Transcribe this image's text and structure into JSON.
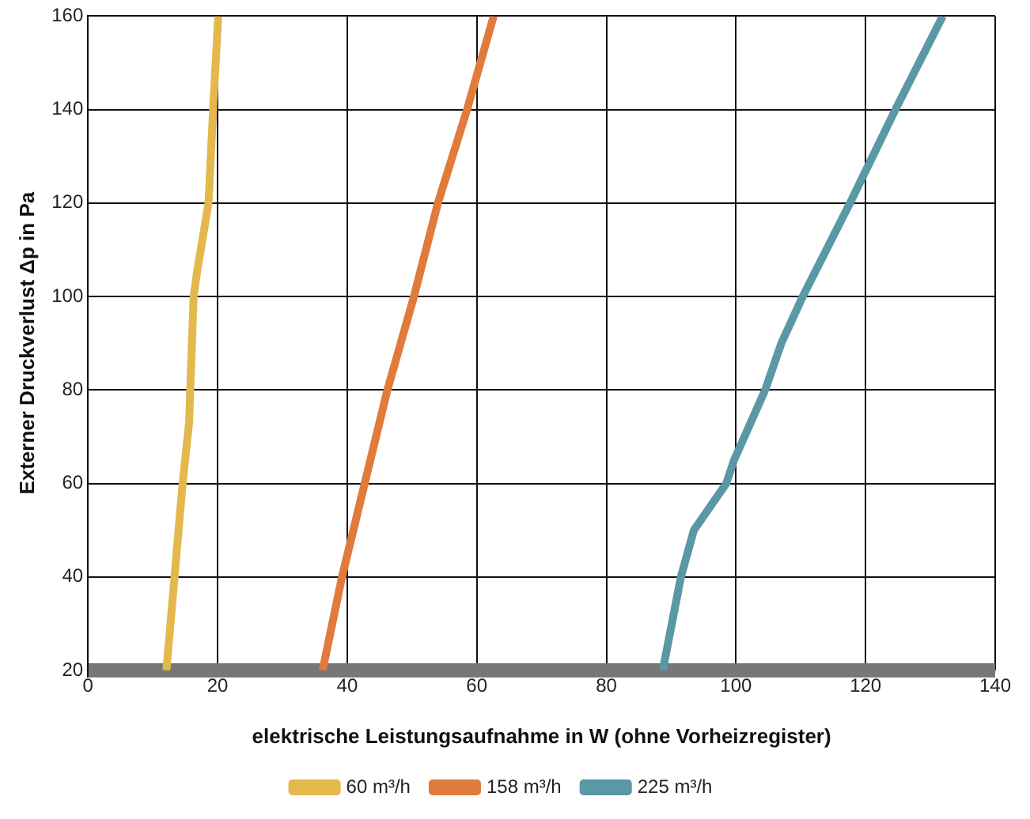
{
  "chart_data": {
    "type": "line",
    "xlabel": "elektrische Leistungsaufnahme in W (ohne Vorheizregister)",
    "ylabel": "Externer Druckverlust Δp in Pa",
    "xlim": [
      0,
      140
    ],
    "xticks": [
      0,
      20,
      40,
      60,
      80,
      100,
      120,
      140
    ],
    "ylim": [
      20,
      160
    ],
    "yticks": [
      20,
      40,
      60,
      80,
      100,
      120,
      140,
      160
    ],
    "grid": true,
    "legend": "bottom",
    "marker": "none",
    "line_style": "solid",
    "series": [
      {
        "name": "60 m³/h",
        "color": "#e3b94e",
        "x": [
          12.1,
          14.6,
          15.6,
          16.3,
          16.8,
          18.6,
          19.3,
          20.1
        ],
        "values": [
          20,
          60,
          73,
          100,
          105,
          120,
          140,
          160
        ]
      },
      {
        "name": "158 m³/h",
        "color": "#e07b3c",
        "x": [
          36.2,
          39.2,
          42.7,
          46.2,
          50.3,
          54,
          58.5,
          62.6
        ],
        "values": [
          20,
          40,
          60,
          80,
          100,
          120,
          140,
          160
        ]
      },
      {
        "name": "225 m³/h",
        "color": "#5a98a5",
        "x": [
          88.7,
          91.5,
          93.5,
          98.5,
          99.7,
          104.5,
          107,
          110.3,
          117.6,
          124.6,
          131.9
        ],
        "values": [
          20,
          40,
          50,
          60,
          65,
          80,
          90,
          100,
          120,
          140,
          160
        ]
      }
    ]
  }
}
